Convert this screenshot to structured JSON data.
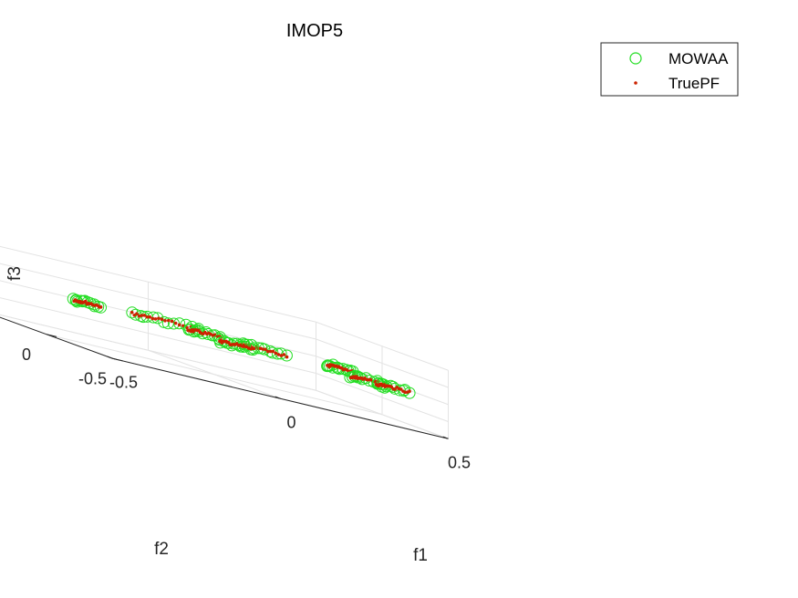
{
  "chart_data": {
    "type": "scatter",
    "projection": "3d",
    "title": "IMOP5",
    "xlabel": "f1",
    "ylabel": "f2",
    "zlabel": "f3",
    "xlim": [
      -0.5,
      0.5
    ],
    "ylim": [
      -0.5,
      0.5
    ],
    "zlim": [
      -0.5,
      1.5
    ],
    "xticks": [
      "-0.5",
      "0",
      "0.5"
    ],
    "yticks": [
      "-0.5",
      "0",
      "0.5"
    ],
    "zticks": [
      "-0.5",
      "0",
      "0.5",
      "1",
      "1.5"
    ],
    "grid": true,
    "legend_position": "top-right",
    "series": [
      {
        "name": "MOWAA",
        "marker": "circle-open",
        "color": "#22dd22"
      },
      {
        "name": "TruePF",
        "marker": "dot",
        "color": "#cc2200"
      }
    ],
    "clusters": [
      {
        "xrange": [
          -0.08,
          0.12
        ],
        "yrange": [
          0.38,
          0.46
        ],
        "z": 0.5
      },
      {
        "xrange": [
          0.02,
          0.12
        ],
        "yrange": [
          0.22,
          0.28
        ],
        "z": 0.5
      },
      {
        "xrange": [
          -0.26,
          -0.18
        ],
        "yrange": [
          0.38,
          0.42
        ],
        "z": 0.5
      },
      {
        "xrange": [
          0.12,
          0.26
        ],
        "yrange": [
          0.08,
          0.14
        ],
        "z": 0.5
      },
      {
        "xrange": [
          0.02,
          0.12
        ],
        "yrange": [
          -0.02,
          0.04
        ],
        "z": 0.5
      },
      {
        "xrange": [
          0.38,
          0.46
        ],
        "yrange": [
          0.08,
          0.14
        ],
        "z": 0.5
      },
      {
        "xrange": [
          0.32,
          0.42
        ],
        "yrange": [
          -0.26,
          -0.18
        ],
        "z": 0.5
      },
      {
        "xrange": [
          0.36,
          0.46
        ],
        "yrange": [
          -0.34,
          -0.28
        ],
        "z": 0.5
      }
    ]
  }
}
